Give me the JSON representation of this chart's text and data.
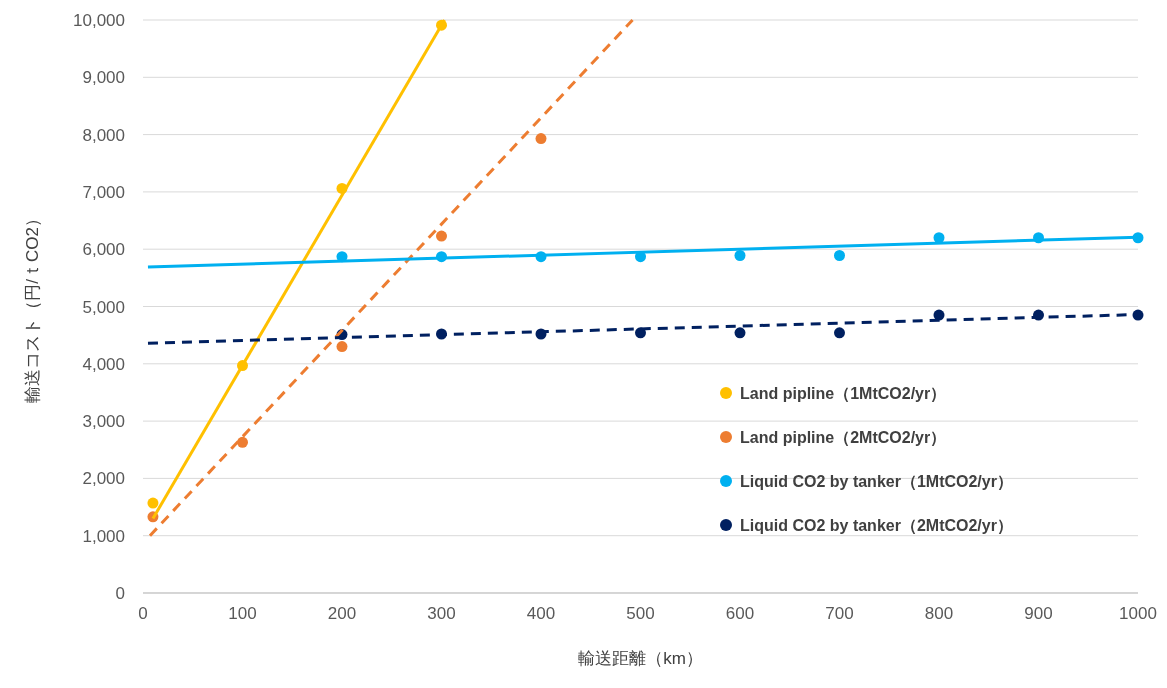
{
  "chart_data": {
    "type": "scatter",
    "xlabel": "輸送距離（km）",
    "ylabel": "輸送コスト（円/ｔCO2）",
    "xlim": [
      0,
      1000
    ],
    "xticks": [
      0,
      100,
      200,
      300,
      400,
      500,
      600,
      700,
      800,
      900,
      1000
    ],
    "ylim": [
      0,
      10000
    ],
    "yticks": [
      {
        "value": 0,
        "label": "0"
      },
      {
        "value": 1000,
        "label": "1,000"
      },
      {
        "value": 2000,
        "label": "2,000"
      },
      {
        "value": 3000,
        "label": "3,000"
      },
      {
        "value": 4000,
        "label": "4,000"
      },
      {
        "value": 5000,
        "label": "5,000"
      },
      {
        "value": 6000,
        "label": "6,000"
      },
      {
        "value": 7000,
        "label": "7,000"
      },
      {
        "value": 8000,
        "label": "8,000"
      },
      {
        "value": 9000,
        "label": "9,000"
      },
      {
        "value": 10000,
        "label": "10,000"
      }
    ],
    "grid": "y",
    "legend": "bottom right",
    "marker": "circle",
    "series": [
      {
        "name": "Land pipline（1MtCO2/yr）",
        "color": "#ffc000",
        "x": [
          10,
          100,
          200,
          300
        ],
        "values": [
          1570,
          3970,
          7060,
          9910
        ]
      },
      {
        "name": "Land pipline（2MtCO2/yr）",
        "color": "#ed7d31",
        "x": [
          10,
          100,
          200,
          300,
          400
        ],
        "values": [
          1330,
          2630,
          4300,
          6230,
          7930
        ]
      },
      {
        "name": "Liquid CO2 by tanker（1MtCO2/yr）",
        "color": "#00b0f0",
        "x": [
          200,
          300,
          400,
          500,
          600,
          700,
          800,
          900,
          1000
        ],
        "values": [
          5870,
          5870,
          5870,
          5870,
          5890,
          5890,
          6200,
          6200,
          6200
        ]
      },
      {
        "name": "Liquid CO2 by tanker（2MtCO2/yr）",
        "color": "#002060",
        "x": [
          200,
          300,
          400,
          500,
          600,
          700,
          800,
          900,
          1000
        ],
        "values": [
          4510,
          4520,
          4520,
          4540,
          4540,
          4540,
          4850,
          4850,
          4850
        ]
      },
      {
        "color": "#ffc000",
        "type": "line",
        "marker": "none",
        "line_style": "solid",
        "x": [
          10,
          303
        ],
        "values": [
          1300,
          10000
        ]
      },
      {
        "color": "#ed7d31",
        "type": "line",
        "marker": "none",
        "line_style": "dashed",
        "x": [
          7,
          492
        ],
        "values": [
          1000,
          10000
        ]
      },
      {
        "color": "#00b0f0",
        "type": "line",
        "marker": "none",
        "line_style": "solid",
        "x": [
          5,
          1000
        ],
        "values": [
          5690,
          6210
        ]
      },
      {
        "color": "#002060",
        "type": "line",
        "marker": "none",
        "line_style": "dashed",
        "x": [
          5,
          1000
        ],
        "values": [
          4360,
          4860
        ]
      }
    ]
  }
}
